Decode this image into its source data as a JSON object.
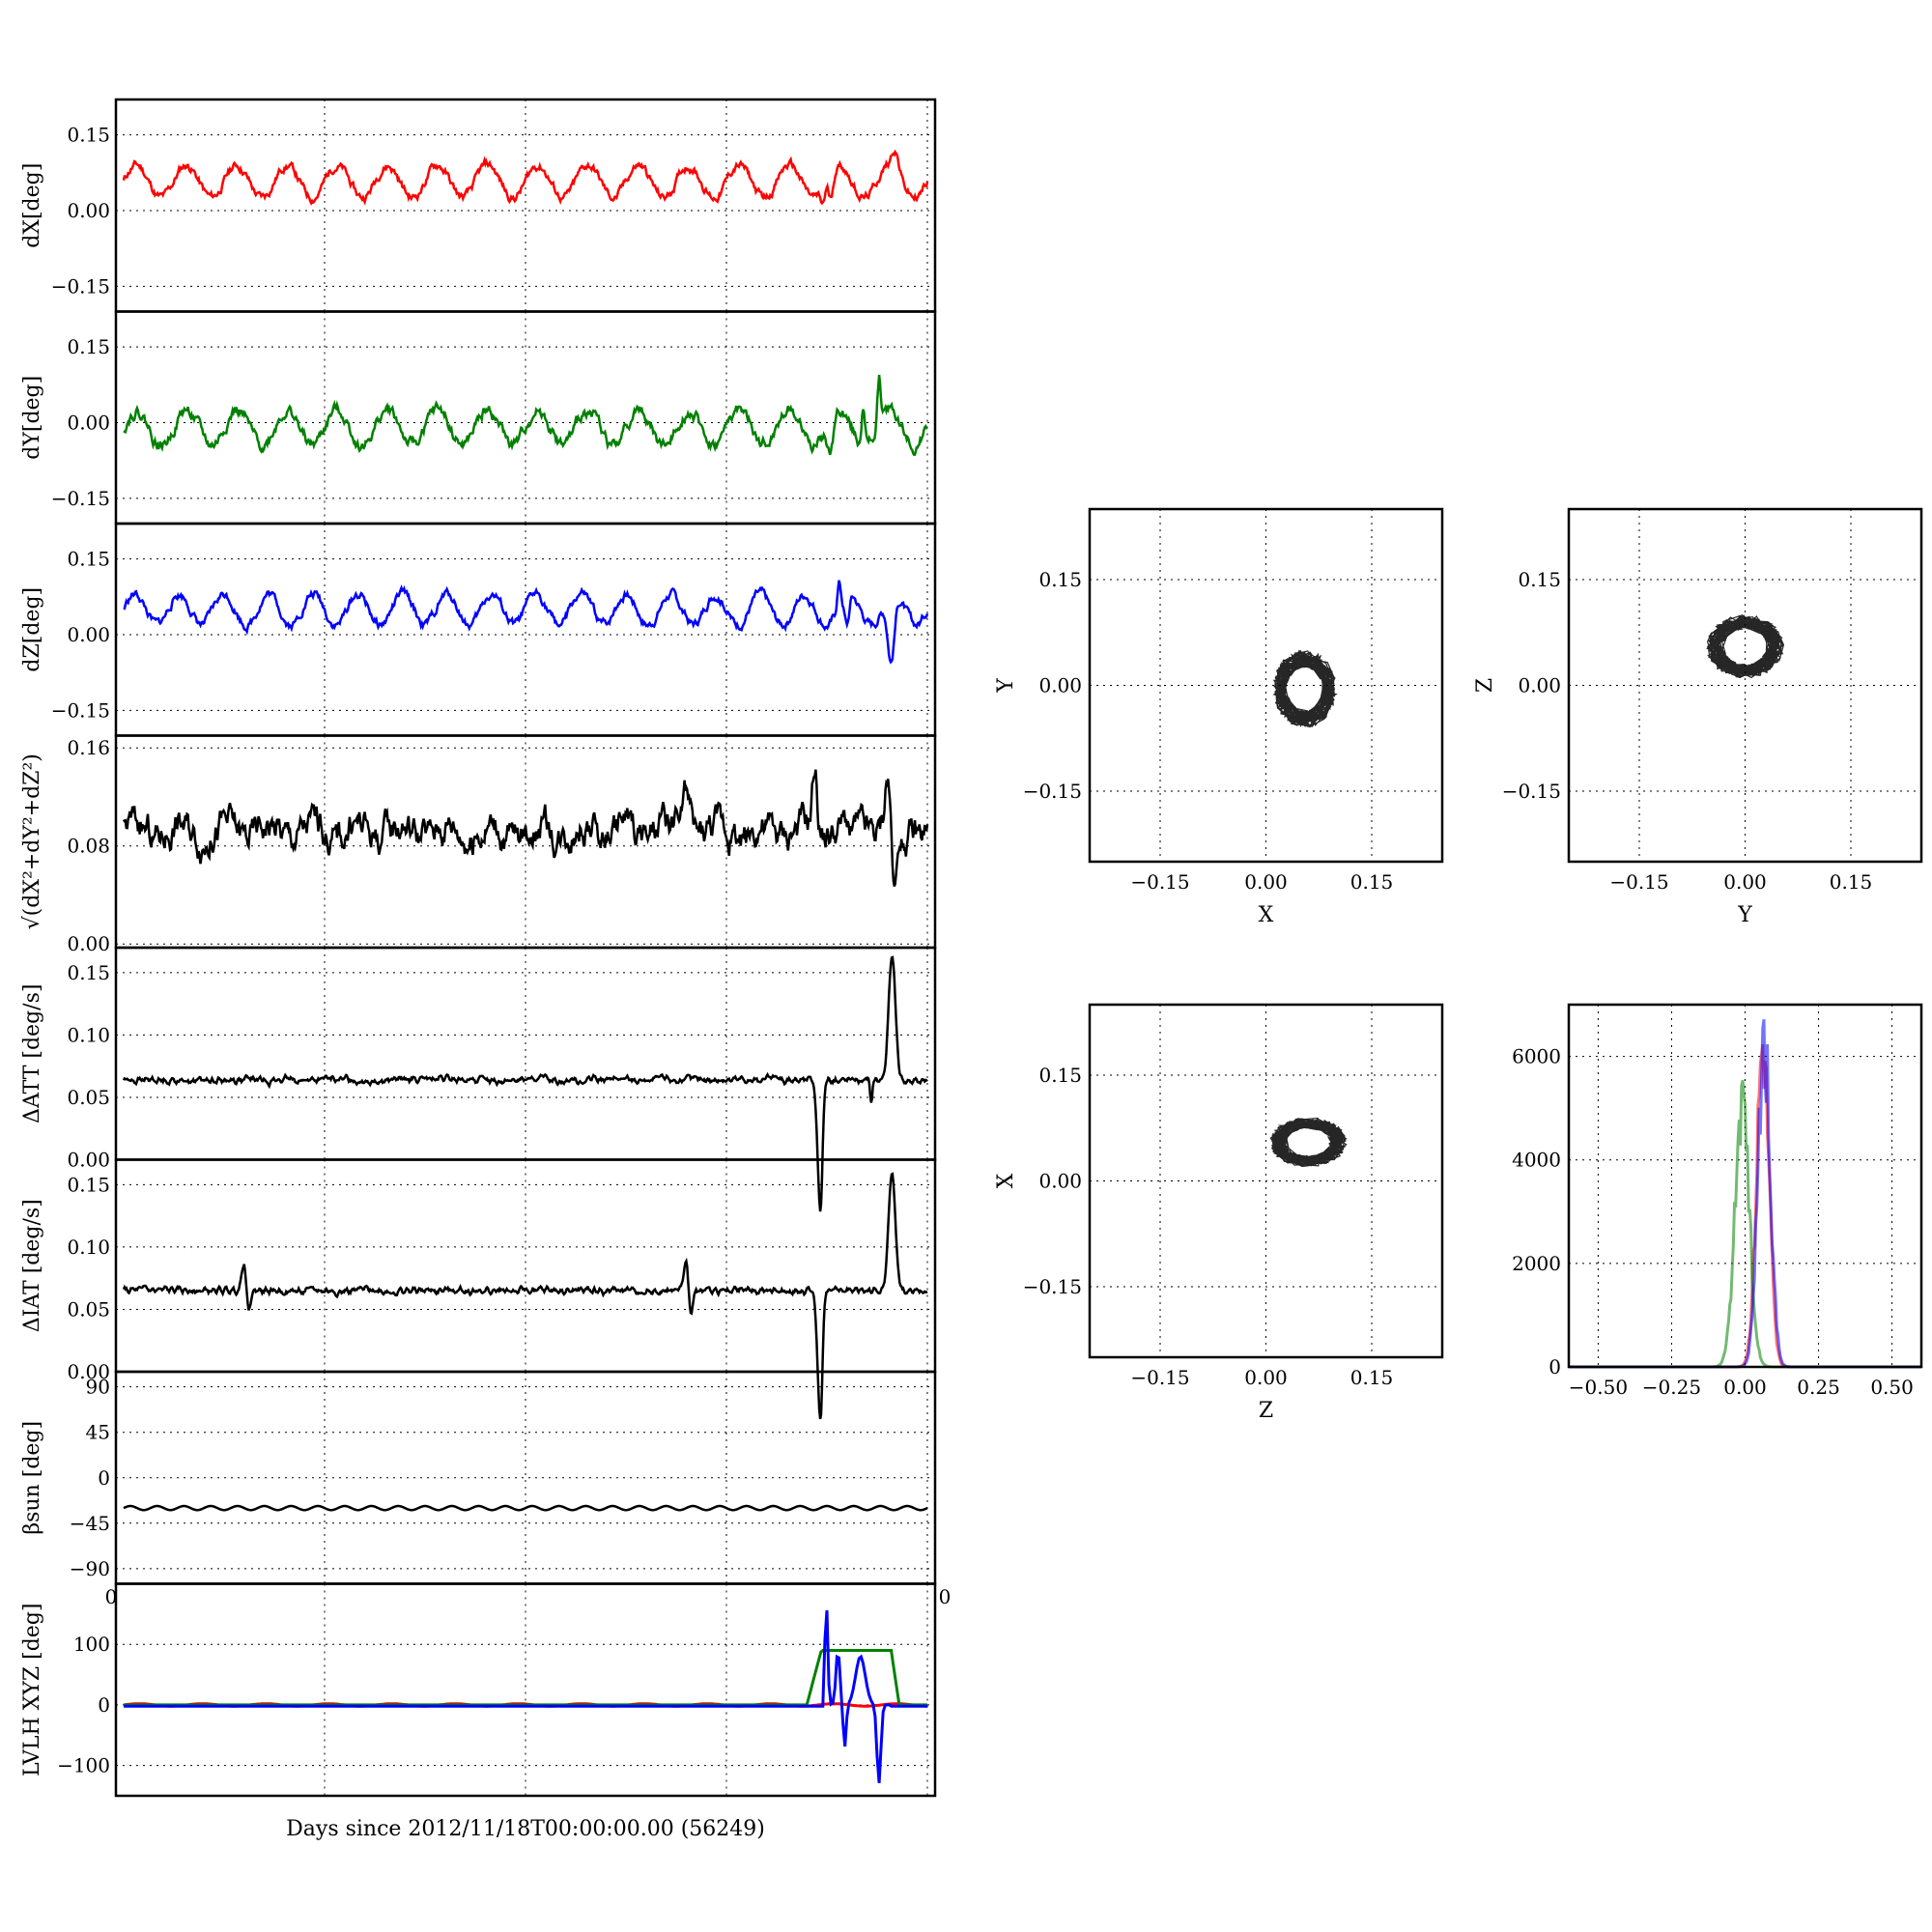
{
  "figure": {
    "xlabel": "Days since 2012/11/18T00:00:00.00 (56249)",
    "stray_tick_left": "0",
    "stray_tick_right": "0"
  },
  "chart_data": [
    {
      "type": "line",
      "panel": "dX",
      "ylabel": "dX[deg]",
      "ylim": [
        -0.2,
        0.22
      ],
      "yticks": [
        -0.15,
        0.0,
        0.15
      ],
      "ytick_labels": [
        "−0.15",
        "0.00",
        "0.15"
      ],
      "color": "#ff0000",
      "base": 0.058,
      "amp": 0.032,
      "cycles": 16,
      "noise": 0.006,
      "seed": 11,
      "events": [
        [
          0.88,
          -0.05,
          0.004
        ],
        [
          0.87,
          -0.03,
          0.004
        ],
        [
          0.96,
          0.04,
          0.006
        ]
      ]
    },
    {
      "type": "line",
      "panel": "dY",
      "ylabel": "dY[deg]",
      "ylim": [
        -0.2,
        0.22
      ],
      "yticks": [
        -0.15,
        0.0,
        0.15
      ],
      "ytick_labels": [
        "−0.15",
        "0.00",
        "0.15"
      ],
      "color": "#008000",
      "base": -0.01,
      "amp": 0.035,
      "cycles": 16,
      "noise": 0.008,
      "seed": 22,
      "events": [
        [
          0.94,
          0.09,
          0.003
        ],
        [
          0.92,
          0.07,
          0.003
        ],
        [
          0.88,
          -0.07,
          0.005
        ]
      ]
    },
    {
      "type": "line",
      "panel": "dZ",
      "ylabel": "dZ[deg]",
      "ylim": [
        -0.2,
        0.22
      ],
      "yticks": [
        -0.15,
        0.0,
        0.15
      ],
      "ytick_labels": [
        "−0.15",
        "0.00",
        "0.15"
      ],
      "color": "#0000ff",
      "base": 0.05,
      "amp": 0.03,
      "cycles": 18,
      "noise": 0.006,
      "seed": 33,
      "events": [
        [
          0.955,
          -0.13,
          0.006
        ],
        [
          0.9,
          -0.06,
          0.004
        ],
        [
          0.89,
          0.05,
          0.003
        ]
      ]
    },
    {
      "type": "line",
      "panel": "dR",
      "ylabel": "√(dX²+dY²+dZ²)",
      "ylim": [
        -0.003,
        0.17
      ],
      "yticks": [
        0.0,
        0.08,
        0.16
      ],
      "ytick_labels": [
        "0.00",
        "0.08",
        "0.16"
      ],
      "color": "#000000",
      "base": 0.093,
      "amp": 0.006,
      "cycles": 18,
      "noise": 0.009,
      "seed": 44,
      "events": [
        [
          0.86,
          0.05,
          0.004
        ],
        [
          0.95,
          0.04,
          0.004
        ],
        [
          0.96,
          -0.05,
          0.004
        ],
        [
          0.7,
          0.03,
          0.006
        ]
      ]
    },
    {
      "type": "line",
      "panel": "dATT",
      "ylabel": "ΔATT [deg/s]",
      "ylim": [
        0,
        0.17
      ],
      "yticks": [
        0.0,
        0.05,
        0.1,
        0.15
      ],
      "ytick_labels": [
        "0.00",
        "0.05",
        "0.10",
        "0.15"
      ],
      "color": "#000000",
      "base": 0.064,
      "amp": 0.001,
      "cycles": 120,
      "noise": 0.0015,
      "seed": 55,
      "events": [
        [
          0.956,
          0.098,
          0.006
        ],
        [
          0.865,
          -0.063,
          0.004
        ],
        [
          0.868,
          -0.06,
          0.003
        ],
        [
          0.93,
          -0.02,
          0.002
        ]
      ]
    },
    {
      "type": "line",
      "panel": "dIAT",
      "ylabel": "ΔIAT [deg/s]",
      "ylim": [
        0,
        0.17
      ],
      "yticks": [
        0.0,
        0.05,
        0.1,
        0.15
      ],
      "ytick_labels": [
        "0.00",
        "0.05",
        "0.10",
        "0.15"
      ],
      "color": "#000000",
      "base": 0.065,
      "amp": 0.001,
      "cycles": 120,
      "noise": 0.0015,
      "seed": 66,
      "events": [
        [
          0.956,
          0.095,
          0.006
        ],
        [
          0.865,
          -0.063,
          0.004
        ],
        [
          0.868,
          -0.06,
          0.003
        ],
        [
          0.15,
          0.025,
          0.004
        ],
        [
          0.155,
          -0.02,
          0.004
        ],
        [
          0.7,
          0.025,
          0.004
        ],
        [
          0.705,
          -0.02,
          0.004
        ]
      ]
    },
    {
      "type": "line",
      "panel": "beta",
      "ylabel": "βsun [deg]",
      "ylim": [
        -105,
        105
      ],
      "yticks": [
        -90,
        -45,
        0,
        45,
        90
      ],
      "ytick_labels": [
        "−90",
        "−45",
        "0",
        "45",
        "90"
      ],
      "color": "#000000",
      "base": -30,
      "amp": 2,
      "cycles": 30,
      "noise": 0,
      "seed": 77,
      "events": []
    },
    {
      "type": "line",
      "panel": "lvlh",
      "ylabel": "LVLH XYZ [deg]",
      "ylim": [
        -150,
        200
      ],
      "yticks": [
        -100,
        0,
        100
      ],
      "ytick_labels": [
        "−100",
        "0",
        "100"
      ],
      "series": [
        {
          "name": "",
          "color": "#ff0000"
        },
        {
          "name": "",
          "color": "#008000"
        },
        {
          "name": "",
          "color": "#0000ff"
        }
      ]
    },
    {
      "type": "scatter",
      "panel": "XY",
      "xlabel": "X",
      "ylabel": "Y",
      "xlim": [
        -0.25,
        0.25
      ],
      "ylim": [
        -0.25,
        0.25
      ],
      "ticks": [
        -0.15,
        0.0,
        0.15
      ],
      "tick_labels": [
        "−0.15",
        "0.00",
        "0.15"
      ],
      "center": [
        0.055,
        -0.005
      ],
      "radius": [
        0.045,
        0.055
      ]
    },
    {
      "type": "scatter",
      "panel": "YZ",
      "xlabel": "Y",
      "ylabel": "Z",
      "xlim": [
        -0.25,
        0.25
      ],
      "ylim": [
        -0.25,
        0.25
      ],
      "ticks": [
        -0.15,
        0.0,
        0.15
      ],
      "tick_labels": [
        "−0.15",
        "0.00",
        "0.15"
      ],
      "center": [
        0.0,
        0.055
      ],
      "radius": [
        0.055,
        0.045
      ]
    },
    {
      "type": "scatter",
      "panel": "ZX",
      "xlabel": "Z",
      "ylabel": "X",
      "xlim": [
        -0.25,
        0.25
      ],
      "ylim": [
        -0.25,
        0.25
      ],
      "ticks": [
        -0.15,
        0.0,
        0.15
      ],
      "tick_labels": [
        "−0.15",
        "0.00",
        "0.15"
      ],
      "center": [
        0.06,
        0.055
      ],
      "radius": [
        0.055,
        0.035
      ]
    },
    {
      "type": "line",
      "panel": "hist",
      "xlim": [
        -0.6,
        0.6
      ],
      "ylim": [
        0,
        7000
      ],
      "xticks": [
        -0.5,
        -0.25,
        0.0,
        0.25,
        0.5
      ],
      "xtick_labels": [
        "−0.50",
        "−0.25",
        "0.00",
        "0.25",
        "0.50"
      ],
      "yticks": [
        0,
        2000,
        4000,
        6000
      ],
      "ytick_labels": [
        "0",
        "2000",
        "4000",
        "6000"
      ],
      "series": [
        {
          "name": "",
          "color": "#ff0000",
          "center": 0.06,
          "width": 0.03,
          "peak": 6200
        },
        {
          "name": "",
          "color": "#008000",
          "center": -0.01,
          "width": 0.035,
          "peak": 5000
        },
        {
          "name": "",
          "color": "#0000ff",
          "center": 0.065,
          "width": 0.03,
          "peak": 6300
        }
      ]
    }
  ]
}
